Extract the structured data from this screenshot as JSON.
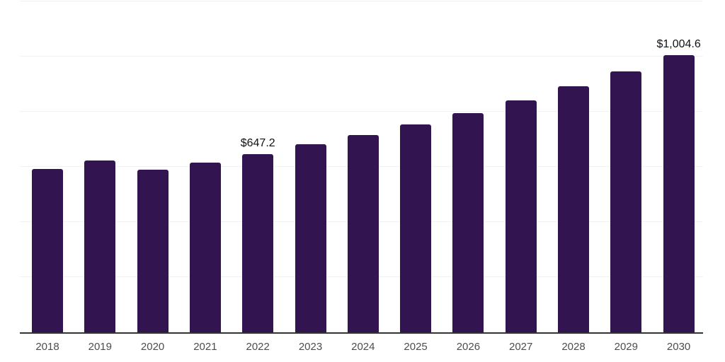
{
  "chart_data": {
    "type": "bar",
    "title": "",
    "xlabel": "",
    "ylabel": "",
    "categories": [
      "2018",
      "2019",
      "2020",
      "2021",
      "2022",
      "2023",
      "2024",
      "2025",
      "2026",
      "2027",
      "2028",
      "2029",
      "2030"
    ],
    "values": [
      593,
      622,
      591,
      615,
      647.2,
      681,
      716,
      753,
      796,
      842,
      893,
      947,
      1004.6
    ],
    "value_labels": [
      "",
      "",
      "",
      "",
      "$647.2",
      "",
      "",
      "",
      "",
      "",
      "",
      "",
      "$1,004.6"
    ],
    "ylim": [
      0,
      1200
    ],
    "gridline_values": [
      200,
      400,
      600,
      800,
      1000,
      1200
    ],
    "grid": "on",
    "legend": "none",
    "colors": {
      "bar": "#321450",
      "gridline": "#f2f2f2",
      "axis_line": "#333333",
      "tick_label": "#4d4d4d",
      "value_label": "#111111",
      "background": "#ffffff"
    }
  }
}
